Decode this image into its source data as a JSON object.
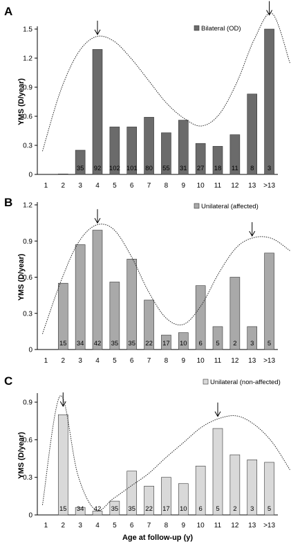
{
  "chart_data": [
    {
      "id": "A",
      "panel_label": "A",
      "type": "bar",
      "categories": [
        "1",
        "2",
        "3",
        "4",
        "5",
        "6",
        "7",
        "8",
        "9",
        "10",
        "11",
        "12",
        "13",
        ">13"
      ],
      "series": [
        {
          "name": "Bilateral (OD)",
          "color": "#6b6b6b",
          "values": [
            0,
            0.005,
            0.25,
            1.29,
            0.49,
            0.49,
            0.59,
            0.43,
            0.56,
            0.32,
            0.29,
            0.41,
            0.83,
            1.5
          ]
        }
      ],
      "n_labels": [
        "",
        "",
        "35",
        "92",
        "102",
        "101",
        "80",
        "55",
        "31",
        "27",
        "18",
        "11",
        "8",
        "3"
      ],
      "fit_curve": [
        0.24,
        0.85,
        1.25,
        1.42,
        1.38,
        1.2,
        0.97,
        0.74,
        0.58,
        0.5,
        0.62,
        0.95,
        1.4,
        1.66,
        1.15
      ],
      "arrow_at": [
        "4",
        ">13"
      ],
      "ylabel": "YMS (D/year)",
      "xlabel": "",
      "ylim": [
        0,
        1.5
      ],
      "yticks": [
        "0",
        "0.3",
        "0.6",
        "0.9",
        "1.2",
        "1.5"
      ],
      "grid": false,
      "legend_position": "top-right"
    },
    {
      "id": "B",
      "panel_label": "B",
      "type": "bar",
      "categories": [
        "1",
        "2",
        "3",
        "4",
        "5",
        "6",
        "7",
        "8",
        "9",
        "10",
        "11",
        "12",
        "13",
        ">13"
      ],
      "series": [
        {
          "name": "Unilateral (affected)",
          "color": "#a9a9a9",
          "values": [
            0,
            0.55,
            0.87,
            0.99,
            0.56,
            0.75,
            0.41,
            0.12,
            0.14,
            0.53,
            0.19,
            0.6,
            0.19,
            0.8
          ]
        }
      ],
      "n_labels": [
        "",
        "15",
        "34",
        "42",
        "35",
        "35",
        "22",
        "17",
        "10",
        "6",
        "5",
        "2",
        "3",
        "5"
      ],
      "fit_curve": [
        0.13,
        0.55,
        0.88,
        1.03,
        1.0,
        0.78,
        0.48,
        0.26,
        0.21,
        0.37,
        0.64,
        0.85,
        0.93,
        0.92,
        0.82
      ],
      "arrow_at": [
        "4",
        "13"
      ],
      "ylabel": "YMS (D/year)",
      "xlabel": "",
      "ylim": [
        0,
        1.2
      ],
      "yticks": [
        "0",
        "0.3",
        "0.6",
        "0.9",
        "1.2"
      ],
      "grid": false,
      "legend_position": "top-right"
    },
    {
      "id": "C",
      "panel_label": "C",
      "type": "bar",
      "categories": [
        "1",
        "2",
        "3",
        "4",
        "5",
        "6",
        "7",
        "8",
        "9",
        "10",
        "11",
        "12",
        "13",
        ">13"
      ],
      "series": [
        {
          "name": "Unilateral (non-affected)",
          "color": "#d9d9d9",
          "values": [
            0,
            0.8,
            0.06,
            0.03,
            0.11,
            0.35,
            0.23,
            0.3,
            0.25,
            0.39,
            0.69,
            0.48,
            0.44,
            0.42
          ]
        }
      ],
      "n_labels": [
        "",
        "15",
        "34",
        "42",
        "35",
        "35",
        "22",
        "17",
        "10",
        "6",
        "5",
        "2",
        "3",
        "5"
      ],
      "fit_curve": [
        0.08,
        0.95,
        0.32,
        0.04,
        0.13,
        0.23,
        0.33,
        0.46,
        0.58,
        0.7,
        0.77,
        0.79,
        0.72,
        0.58,
        0.36
      ],
      "arrow_at": [
        "2",
        "11"
      ],
      "ylabel": "YMS (D/year)",
      "xlabel": "Age at follow-up (y)",
      "ylim": [
        0,
        0.95
      ],
      "yticks": [
        "0",
        "0.3",
        "0.6",
        "0.9"
      ],
      "grid": false,
      "legend_position": "top-right"
    }
  ]
}
